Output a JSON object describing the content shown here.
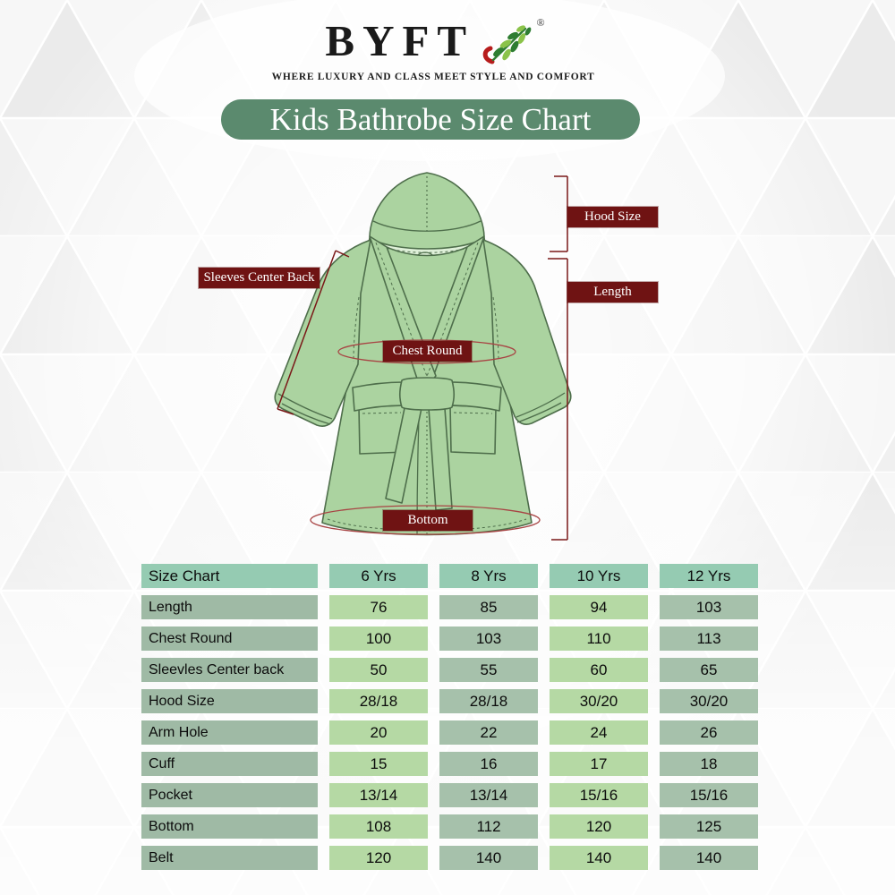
{
  "brand": {
    "name": "BYFT",
    "registered_mark": "®",
    "tagline": "WHERE LUXURY AND CLASS MEET STYLE AND COMFORT"
  },
  "banner": {
    "title": "Kids Bathrobe Size Chart"
  },
  "icons": {
    "logo_leaf": "leaf-branch-icon"
  },
  "diagram": {
    "labels": {
      "hood_size": "Hood Size",
      "length": "Length",
      "sleeves_center_back": "Sleeves Center Back",
      "chest_round": "Chest Round",
      "bottom": "Bottom"
    }
  },
  "colors": {
    "banner_green": "#5b8a6e",
    "label_maroon": "#6f1313",
    "measure_line": "#7a1818",
    "robe_fill": "#abd3a0",
    "robe_outline": "#4e6e4b",
    "robe_inner": "#dff0d9",
    "ellipse_red": "#a84444",
    "header_teal": "#95cbb2",
    "row_label_green": "#9fbaa5",
    "cell_light_green": "#b5d9a4",
    "cell_sage_green": "#a6c1ab",
    "logo_leaf_dark": "#2e7d32",
    "logo_leaf_light": "#8bc34a",
    "logo_swoosh_red": "#b71c1c"
  },
  "table": {
    "header": [
      "Size Chart",
      "6 Yrs",
      "8 Yrs",
      "10 Yrs",
      "12 Yrs"
    ],
    "rows": [
      {
        "label": "Length",
        "values": [
          "76",
          "85",
          "94",
          "103"
        ]
      },
      {
        "label": "Chest Round",
        "values": [
          "100",
          "103",
          "110",
          "113"
        ]
      },
      {
        "label": "Sleevles Center back",
        "values": [
          "50",
          "55",
          "60",
          "65"
        ]
      },
      {
        "label": "Hood Size",
        "values": [
          "28/18",
          "28/18",
          "30/20",
          "30/20"
        ]
      },
      {
        "label": "Arm Hole",
        "values": [
          "20",
          "22",
          "24",
          "26"
        ]
      },
      {
        "label": "Cuff",
        "values": [
          "15",
          "16",
          "17",
          "18"
        ]
      },
      {
        "label": "Pocket",
        "values": [
          "13/14",
          "13/14",
          "15/16",
          "15/16"
        ]
      },
      {
        "label": "Bottom",
        "values": [
          "108",
          "112",
          "120",
          "125"
        ]
      },
      {
        "label": "Belt",
        "values": [
          "120",
          "140",
          "140",
          "140"
        ]
      }
    ]
  }
}
